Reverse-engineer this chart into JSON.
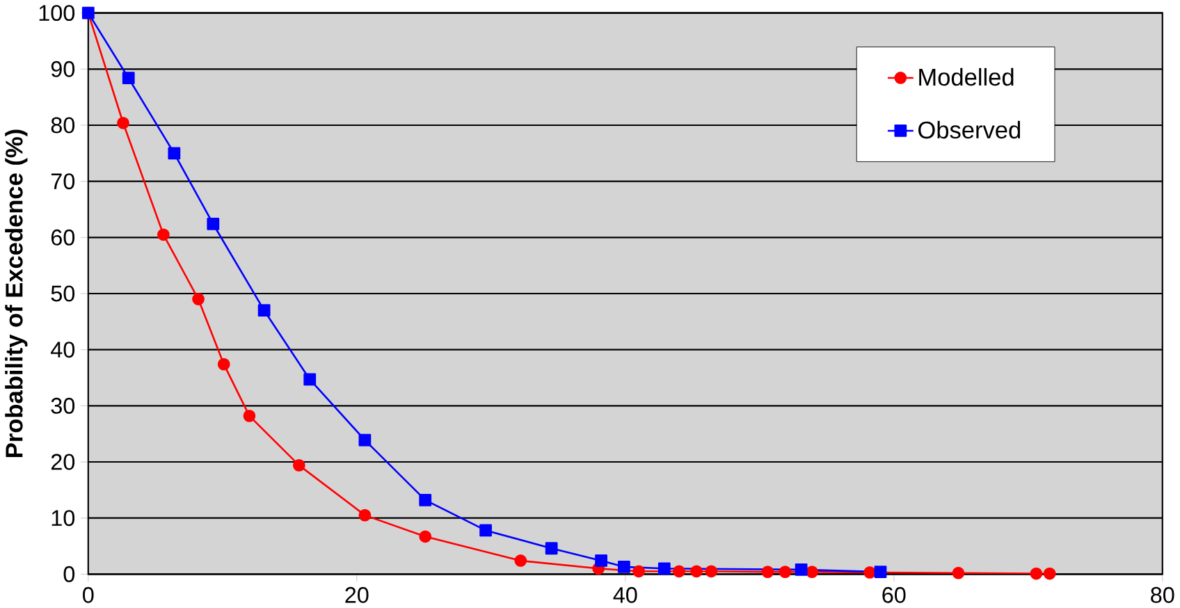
{
  "chart_data": {
    "type": "line",
    "ylabel": "Probability of Excedence (%)",
    "xlim": [
      0,
      80
    ],
    "xticks": [
      0,
      20,
      40,
      60,
      80
    ],
    "ylim": [
      0,
      100
    ],
    "yticks": [
      0,
      10,
      20,
      30,
      40,
      50,
      60,
      70,
      80,
      90,
      100
    ],
    "grid": "y",
    "legend": "top right",
    "line_style": "solid",
    "series": [
      {
        "name": "Modelled",
        "color": "#ff0000",
        "marker": "circle",
        "x": [
          0,
          2.6,
          5.6,
          8.2,
          10.1,
          12.0,
          15.7,
          20.6,
          25.1,
          32.2,
          38,
          41.0,
          42.7,
          44.0,
          45.3,
          46.4,
          50.6,
          51.9,
          53.9,
          58.2,
          64.8,
          70.6,
          71.6
        ],
        "values": [
          100,
          80.4,
          60.5,
          49,
          37.4,
          28.2,
          19.4,
          10.5,
          6.7,
          2.4,
          1,
          0.5,
          null,
          0.5,
          0.5,
          0.5,
          0.4,
          0.4,
          0.4,
          0.3,
          0.2,
          0.1,
          0.1
        ]
      },
      {
        "name": "Observed",
        "color": "#0000ff",
        "marker": "square",
        "x": [
          0,
          3.0,
          6.4,
          9.3,
          13.1,
          16.5,
          20.6,
          25.1,
          29.6,
          34.5,
          38.2,
          39.9,
          42.9,
          53.1,
          59.0
        ],
        "values": [
          100,
          88.4,
          75,
          62.4,
          47,
          34.7,
          23.9,
          13.2,
          7.8,
          4.6,
          2.4,
          1.3,
          1,
          0.8,
          0.4
        ]
      }
    ]
  }
}
